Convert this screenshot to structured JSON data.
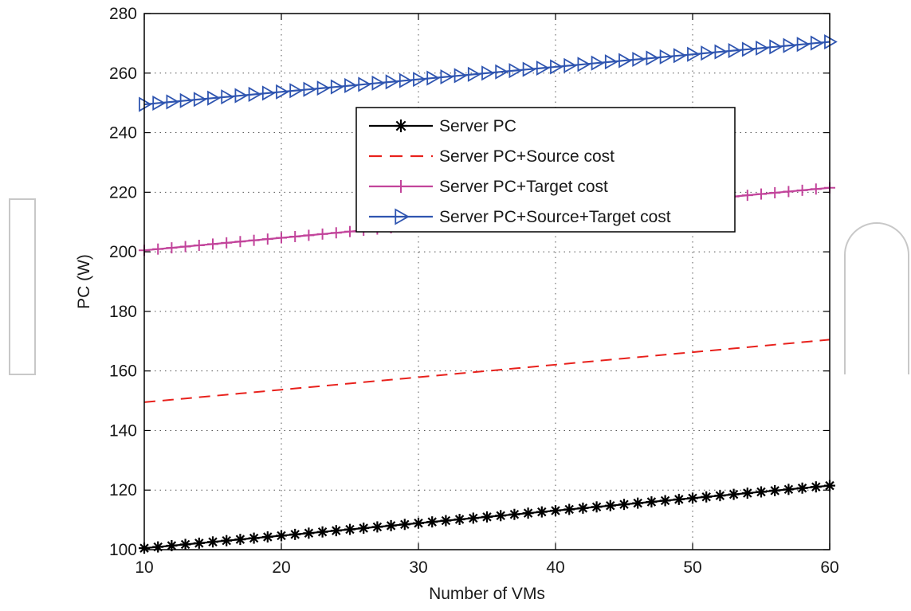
{
  "colors": {
    "background": "#ffffff",
    "axis": "#000000",
    "grid": "#555555",
    "watermark": "#c8c8c8"
  },
  "chart_data": {
    "type": "line",
    "title": "",
    "xlabel": "Number of VMs",
    "ylabel": "PC (W)",
    "xlim": [
      10,
      60
    ],
    "ylim": [
      100,
      280
    ],
    "xticks": [
      10,
      20,
      30,
      40,
      50,
      60
    ],
    "yticks": [
      100,
      120,
      140,
      160,
      180,
      200,
      220,
      240,
      260,
      280
    ],
    "grid": true,
    "grid_style": "dotted",
    "legend_position": "upper-center",
    "x_start": 10,
    "x_end": 60,
    "x_step": 1,
    "series": [
      {
        "name": "Server PC",
        "color": "#000000",
        "line_style": "solid",
        "marker": "asterisk",
        "y_start": 100.5,
        "y_end": 121.5
      },
      {
        "name": "Server PC+Source cost",
        "color": "#e8211c",
        "line_style": "dashed",
        "marker": "none",
        "y_start": 149.5,
        "y_end": 170.5
      },
      {
        "name": "Server PC+Target cost",
        "color": "#c2449b",
        "line_style": "solid",
        "marker": "plus",
        "y_start": 200.5,
        "y_end": 221.5
      },
      {
        "name": "Server PC+Source+Target cost",
        "color": "#2f55b0",
        "line_style": "solid",
        "marker": "triangle-right",
        "y_start": 249.5,
        "y_end": 270.5
      }
    ]
  }
}
